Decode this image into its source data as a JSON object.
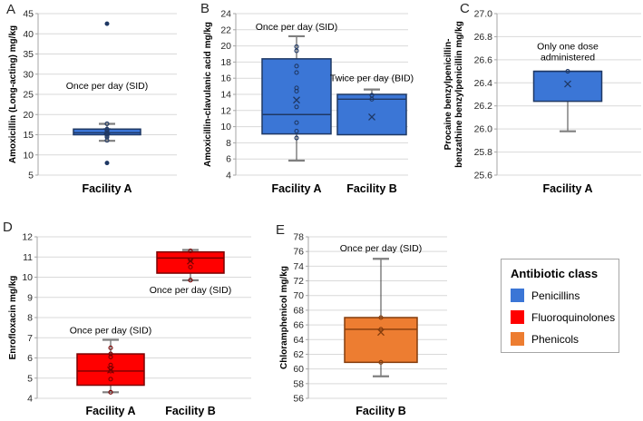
{
  "figure": {
    "legend": {
      "title": "Antibiotic class",
      "items": [
        {
          "label": "Penicillins",
          "color": "#3B76D6"
        },
        {
          "label": "Fluoroquinolones",
          "color": "#FF0000"
        },
        {
          "label": "Phenicols",
          "color": "#ED7D31"
        }
      ]
    }
  },
  "chart_data": [
    {
      "type": "box",
      "panel_label": "A",
      "antibiotic_class": "Penicillins",
      "ylabel": "Amoxicillin (Long-acting) mg/kg",
      "ylim": [
        5,
        45
      ],
      "ytick_step": 5,
      "ytick_decimals": 0,
      "grid": true,
      "box_fill": "#3B76D6",
      "box_edge": "#1F3864",
      "categories": [
        "Facility A"
      ],
      "boxes": [
        {
          "category": "Facility A",
          "q1": 15.0,
          "median": 15.5,
          "q3": 16.4,
          "mean": 15.8,
          "whisker_low": 13.5,
          "whisker_high": 17.7,
          "points": [
            17.7,
            16.4,
            16.1,
            15.9,
            15.6,
            15.3,
            15.0,
            14.7,
            14.4,
            13.6
          ],
          "outliers": [
            42.5,
            8.0
          ],
          "annotation": {
            "text": "Once per day (SID)",
            "y": 27.3
          }
        }
      ]
    },
    {
      "type": "box",
      "panel_label": "B",
      "antibiotic_class": "Penicillins",
      "ylabel": "Amoxicillin-clavulanic acid mg/kg",
      "ylim": [
        4,
        24
      ],
      "ytick_step": 2,
      "ytick_decimals": 0,
      "grid": true,
      "box_fill": "#3B76D6",
      "box_edge": "#1F3864",
      "categories": [
        "Facility A",
        "Facility B"
      ],
      "boxes": [
        {
          "category": "Facility A",
          "q1": 9.1,
          "median": 11.5,
          "q3": 18.4,
          "mean": 13.3,
          "whisker_low": 5.8,
          "whisker_high": 21.2,
          "points": [
            19.9,
            19.4,
            17.5,
            16.7,
            14.8,
            14.4,
            12.45,
            10.5,
            9.45,
            8.6
          ],
          "outliers": [],
          "annotation": {
            "text": "Once per day (SID)",
            "y": 22.4
          }
        },
        {
          "category": "Facility B",
          "q1": 9.0,
          "median": 13.4,
          "q3": 14.0,
          "mean": 11.2,
          "whisker_low": null,
          "whisker_high": 14.6,
          "points": [
            13.9,
            13.4
          ],
          "outliers": [],
          "annotation": {
            "text": "Twice per day (BID)",
            "y": 16.1
          }
        }
      ]
    },
    {
      "type": "box",
      "panel_label": "C",
      "antibiotic_class": "Penicillins",
      "ylabel": "Procaine benzylpenicillin-\nbenzathine benzylpenicillin mg/kg",
      "ylim": [
        25.6,
        27.0
      ],
      "ytick_step": 0.2,
      "ytick_decimals": 1,
      "grid": true,
      "box_fill": "#3B76D6",
      "box_edge": "#1F3864",
      "categories": [
        "Facility A"
      ],
      "boxes": [
        {
          "category": "Facility A",
          "q1": 26.24,
          "median": 26.5,
          "q3": 26.5,
          "mean": 26.39,
          "whisker_low": 25.98,
          "whisker_high": null,
          "points": [
            26.5
          ],
          "outliers": [],
          "annotation": {
            "text": "Only one dose\nadministered",
            "y": 26.72
          }
        }
      ]
    },
    {
      "type": "box",
      "panel_label": "D",
      "antibiotic_class": "Fluoroquinolones",
      "ylabel": "Enrofloxacin mg/kg",
      "ylim": [
        4,
        12
      ],
      "ytick_step": 1,
      "ytick_decimals": 0,
      "grid": true,
      "box_fill": "#FF0000",
      "box_edge": "#7A0000",
      "categories": [
        "Facility A",
        "Facility B"
      ],
      "boxes": [
        {
          "category": "Facility A",
          "q1": 4.65,
          "median": 5.35,
          "q3": 6.2,
          "mean": 5.4,
          "whisker_low": 4.3,
          "whisker_high": 6.9,
          "points": [
            6.5,
            6.2,
            6.05,
            5.65,
            5.5,
            5.35,
            4.95,
            4.3
          ],
          "outliers": [],
          "annotation": {
            "text": "Once per day (SID)",
            "y": 7.4
          }
        },
        {
          "category": "Facility B",
          "q1": 10.2,
          "median": 10.95,
          "q3": 11.25,
          "mean": 10.8,
          "whisker_low": 9.85,
          "whisker_high": 11.35,
          "points": [
            11.3,
            10.85,
            10.5,
            9.85
          ],
          "outliers": [],
          "annotation": {
            "text": "Once per day (SID)",
            "y": 9.4
          }
        }
      ]
    },
    {
      "type": "box",
      "panel_label": "E",
      "antibiotic_class": "Phenicols",
      "ylabel": "Chloramphenicol mg/kg",
      "ylim": [
        56,
        78
      ],
      "ytick_step": 2,
      "ytick_decimals": 0,
      "grid": true,
      "box_fill": "#ED7D31",
      "box_edge": "#843C0C",
      "categories": [
        "Facility B"
      ],
      "boxes": [
        {
          "category": "Facility B",
          "q1": 60.9,
          "median": 65.4,
          "q3": 67.0,
          "mean": 65.0,
          "whisker_low": 59.0,
          "whisker_high": 75.0,
          "points": [
            67.0,
            65.4,
            60.9
          ],
          "outliers": [],
          "annotation": {
            "text": "Once per day (SID)",
            "y": 76.5
          }
        }
      ]
    }
  ]
}
